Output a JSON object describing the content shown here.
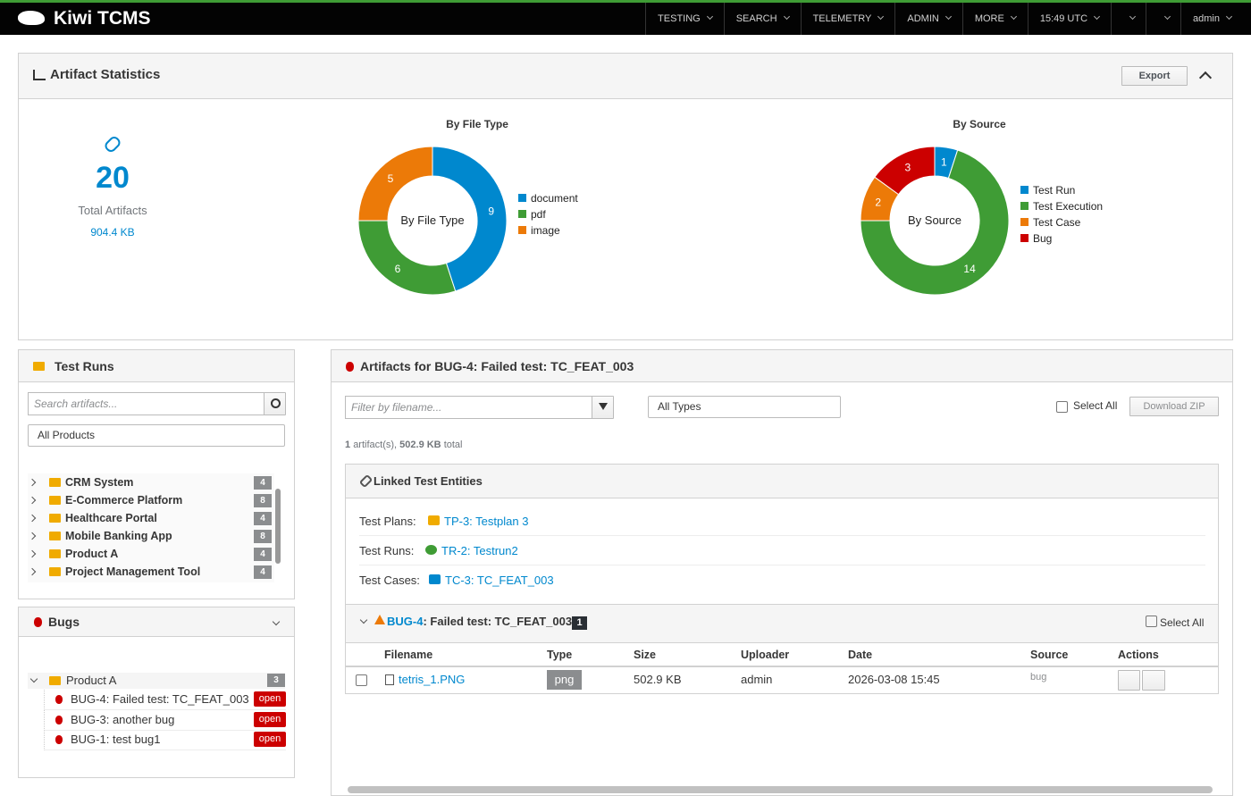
{
  "navbar": {
    "brand": "Kiwi TCMS",
    "menu": [
      "TESTING",
      "SEARCH",
      "TELEMETRY",
      "ADMIN",
      "MORE"
    ],
    "clock": "15:49 UTC",
    "user": "admin"
  },
  "stats_panel": {
    "title": "Artifact Statistics",
    "export": "Export",
    "total": 20,
    "total_label": "Total Artifacts",
    "total_size": "904.4 KB"
  },
  "chart_data": [
    {
      "type": "pie",
      "title": "By File Type",
      "center_label": "By File Type",
      "categories": [
        "document",
        "pdf",
        "image"
      ],
      "values": [
        9,
        6,
        5
      ],
      "colors": [
        "#0088ce",
        "#3f9c35",
        "#ec7a08"
      ],
      "legend": "right"
    },
    {
      "type": "pie",
      "title": "By Source",
      "center_label": "By Source",
      "categories": [
        "Test Run",
        "Test Execution",
        "Test Case",
        "Bug"
      ],
      "values": [
        1,
        14,
        2,
        3
      ],
      "colors": [
        "#0088ce",
        "#3f9c35",
        "#ec7a08",
        "#cc0000"
      ],
      "legend": "right"
    }
  ],
  "test_runs_panel": {
    "title": "Test Runs",
    "search_placeholder": "Search artifacts...",
    "product_filter": "All Products",
    "products": [
      {
        "name": "CRM System",
        "count": 4
      },
      {
        "name": "E-Commerce Platform",
        "count": 8
      },
      {
        "name": "Healthcare Portal",
        "count": 4
      },
      {
        "name": "Mobile Banking App",
        "count": 8
      },
      {
        "name": "Product A",
        "count": 4
      },
      {
        "name": "Project Management Tool",
        "count": 4
      }
    ]
  },
  "bugs_panel": {
    "title": "Bugs",
    "product": "Product A",
    "count": 3,
    "bugs": [
      {
        "label": "BUG-4: Failed test: TC_FEAT_003",
        "status": "open"
      },
      {
        "label": "BUG-3: another bug",
        "status": "open"
      },
      {
        "label": "BUG-1: test bug1",
        "status": "open"
      }
    ]
  },
  "artifacts_panel": {
    "title": "Artifacts for BUG-4: Failed test: TC_FEAT_003",
    "filter_placeholder": "Filter by filename...",
    "type_filter": "All Types",
    "select_all": "Select All",
    "download": "Download ZIP",
    "summary_count": 1,
    "summary_text": "artifact(s),",
    "summary_size": "502.9 KB",
    "summary_total": "total",
    "linked": {
      "title": "Linked Test Entities",
      "rows": [
        {
          "label": "Test Plans:",
          "value": "TP-3: Testplan 3"
        },
        {
          "label": "Test Runs:",
          "value": "TR-2: Testrun2"
        },
        {
          "label": "Test Cases:",
          "value": "TC-3: TC_FEAT_003"
        }
      ]
    },
    "group": {
      "bug_id": "BUG-4",
      "bug_title": ": Failed test: TC_FEAT_003",
      "count": 1,
      "select_all": "Select All"
    },
    "table": {
      "headers": [
        "Filename",
        "Type",
        "Size",
        "Uploader",
        "Date",
        "Source",
        "Actions"
      ],
      "rows": [
        [
          "tetris_1.PNG",
          "png",
          "502.9 KB",
          "admin",
          "2026-03-08 15:45",
          "bug"
        ]
      ]
    }
  }
}
